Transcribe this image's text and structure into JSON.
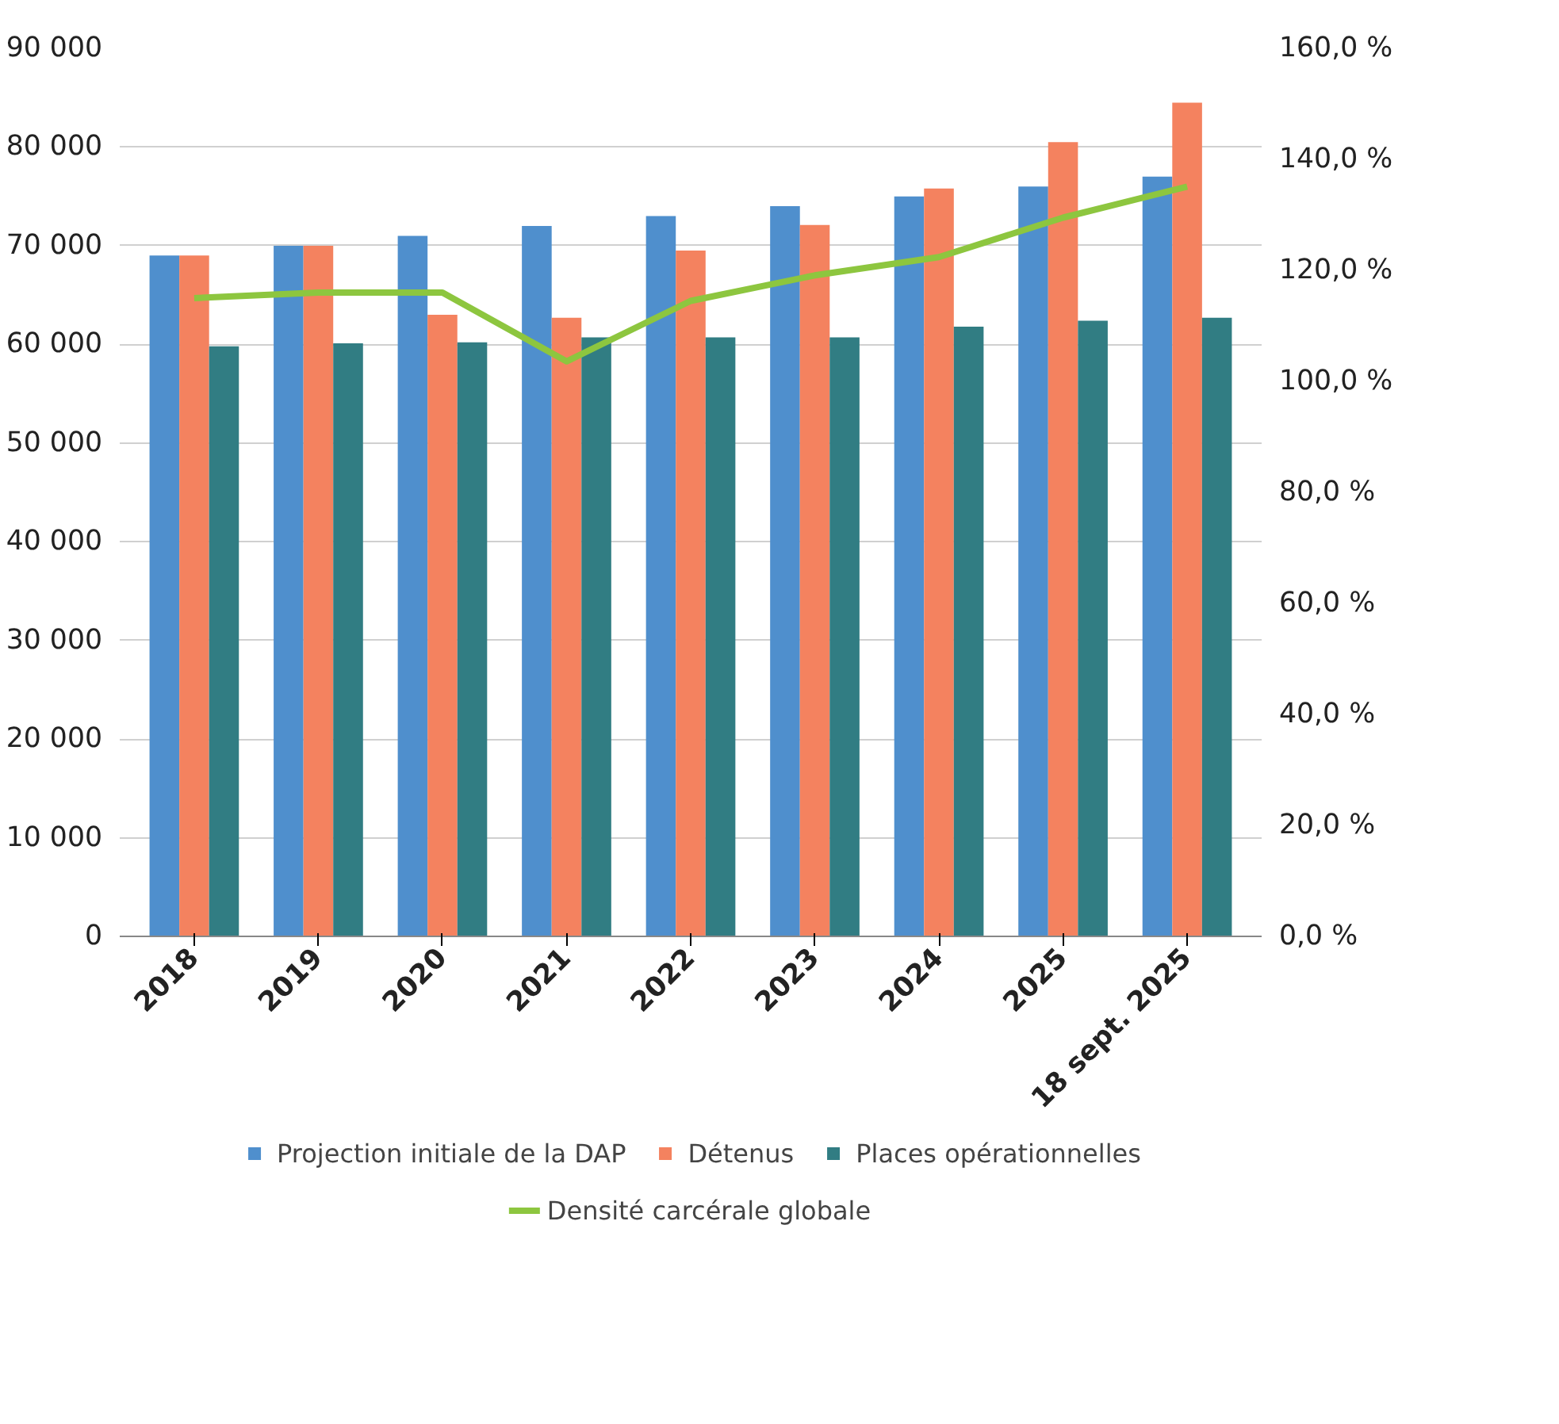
{
  "chart_data": {
    "type": "bar",
    "categories": [
      "2018",
      "2019",
      "2020",
      "2021",
      "2022",
      "2023",
      "2024",
      "2025",
      "18 sept. 2025"
    ],
    "series": [
      {
        "name": "Projection initiale de la DAP",
        "color": "#4f8fcd",
        "values": [
          69000,
          70000,
          71000,
          72000,
          73000,
          74000,
          75000,
          76000,
          77000
        ]
      },
      {
        "name": "Détenus",
        "color": "#f4825f",
        "values": [
          69000,
          70000,
          63000,
          62700,
          69500,
          72100,
          75800,
          80500,
          84500
        ]
      },
      {
        "name": "Places opérationnelles",
        "color": "#317d83",
        "values": [
          59800,
          60100,
          60200,
          60700,
          60700,
          60700,
          61800,
          62400,
          62700
        ]
      },
      {
        "name": "Densité carcérale globale",
        "type": "line",
        "axis": "y2",
        "color": "#8dc63f",
        "values": [
          115.0,
          116.0,
          116.0,
          103.6,
          114.5,
          119.1,
          122.4,
          129.5,
          135.1
        ]
      }
    ],
    "ylim": [
      0,
      90000
    ],
    "yticks": [
      {
        "value": 0,
        "label": "0"
      },
      {
        "value": 10000,
        "label": "10 000"
      },
      {
        "value": 20000,
        "label": "20 000"
      },
      {
        "value": 30000,
        "label": "30 000"
      },
      {
        "value": 40000,
        "label": "40 000"
      },
      {
        "value": 50000,
        "label": "50 000"
      },
      {
        "value": 60000,
        "label": "60 000"
      },
      {
        "value": 70000,
        "label": "70 000"
      },
      {
        "value": 80000,
        "label": "80 000"
      },
      {
        "value": 90000,
        "label": "90 000"
      }
    ],
    "y2lim": [
      0,
      160
    ],
    "y2ticks": [
      {
        "value": 0,
        "label": "0,0 %"
      },
      {
        "value": 20,
        "label": "20,0 %"
      },
      {
        "value": 40,
        "label": "40,0 %"
      },
      {
        "value": 60,
        "label": "60,0 %"
      },
      {
        "value": 80,
        "label": "80,0 %"
      },
      {
        "value": 100,
        "label": "100,0 %"
      },
      {
        "value": 120,
        "label": "120,0 %"
      },
      {
        "value": 140,
        "label": "140,0 %"
      },
      {
        "value": 160,
        "label": "160,0 %"
      }
    ],
    "grid": "y",
    "legend": "bottom"
  }
}
